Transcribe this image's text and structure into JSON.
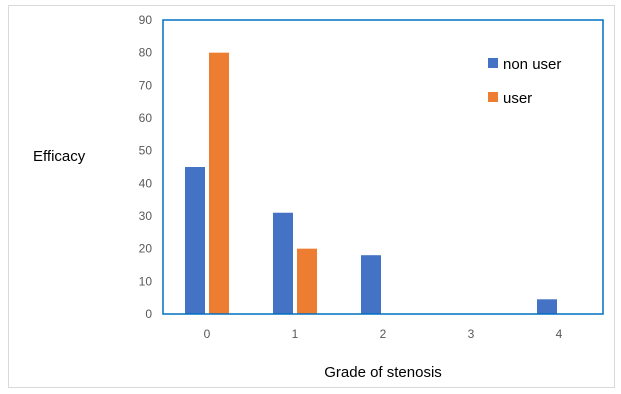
{
  "chart_data": {
    "type": "bar",
    "title": "",
    "xlabel": "Grade of stenosis",
    "ylabel": "Efficacy",
    "categories": [
      "0",
      "1",
      "2",
      "3",
      "4"
    ],
    "series": [
      {
        "name": "non user",
        "color": "#4472c4",
        "values": [
          45,
          31,
          18,
          0,
          4.5
        ]
      },
      {
        "name": "user",
        "color": "#ed7d31",
        "values": [
          80,
          20,
          0,
          0,
          0
        ]
      }
    ],
    "ylim": [
      0,
      90
    ],
    "yticks": [
      0,
      10,
      20,
      30,
      40,
      50,
      60,
      70,
      80,
      90
    ],
    "grid": false,
    "legend_position": "top-right",
    "plot_border_color": "#0070c0"
  }
}
